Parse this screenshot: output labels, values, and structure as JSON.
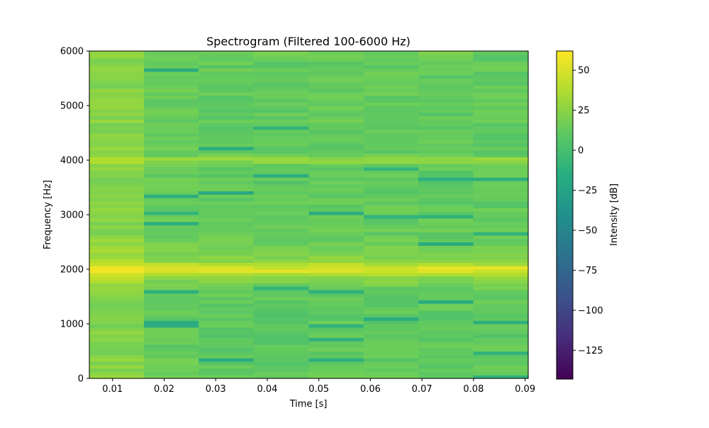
{
  "chart_data": {
    "type": "heatmap",
    "title": "Spectrogram (Filtered 100-6000 Hz)",
    "xlabel": "Time [s]",
    "ylabel": "Frequency [Hz]",
    "xlim": [
      0.0055,
      0.0906
    ],
    "ylim": [
      0,
      6000
    ],
    "x_ticks": [
      0.01,
      0.02,
      0.03,
      0.04,
      0.05,
      0.06,
      0.07,
      0.08,
      0.09
    ],
    "x_tick_labels": [
      "0.01",
      "0.02",
      "0.03",
      "0.04",
      "0.05",
      "0.06",
      "0.07",
      "0.08",
      "0.09"
    ],
    "y_ticks": [
      0,
      1000,
      2000,
      3000,
      4000,
      5000,
      6000
    ],
    "y_tick_labels": [
      "0",
      "1000",
      "2000",
      "3000",
      "4000",
      "5000",
      "6000"
    ],
    "grid": false,
    "colormap": "viridis",
    "colorbar": {
      "label": "Intensity [dB]",
      "range": [
        -143,
        62
      ],
      "ticks": [
        50,
        25,
        0,
        -25,
        -50,
        -75,
        -100,
        -125
      ],
      "tick_labels": [
        "50",
        "25",
        "0",
        "−25",
        "−50",
        "−75",
        "−100",
        "−125"
      ]
    },
    "time_bins": [
      0.0108,
      0.0214,
      0.032,
      0.0427,
      0.0534,
      0.064,
      0.0746,
      0.0853
    ],
    "freq_bin_hz": 62.5,
    "background_level_db": [
      22,
      12,
      10,
      9,
      11,
      10,
      10,
      10
    ],
    "level_breakpoints_db": [
      {
        "hz": 0,
        "db": 16
      },
      {
        "hz": 1000,
        "db": 14
      },
      {
        "hz": 1500,
        "db": 16
      },
      {
        "hz": 1700,
        "db": 20
      },
      {
        "hz": 1850,
        "db": 30
      },
      {
        "hz": 1950,
        "db": 50
      },
      {
        "hz": 2000,
        "db": 60
      },
      {
        "hz": 2050,
        "db": 50
      },
      {
        "hz": 2150,
        "db": 30
      },
      {
        "hz": 2350,
        "db": 22
      },
      {
        "hz": 2600,
        "db": 17
      },
      {
        "hz": 3900,
        "db": 15
      },
      {
        "hz": 3960,
        "db": 25
      },
      {
        "hz": 4000,
        "db": 38
      },
      {
        "hz": 4050,
        "db": 25
      },
      {
        "hz": 4110,
        "db": 16
      },
      {
        "hz": 5900,
        "db": 16
      },
      {
        "hz": 6000,
        "db": 24
      }
    ],
    "notch_level_db": -20
  }
}
